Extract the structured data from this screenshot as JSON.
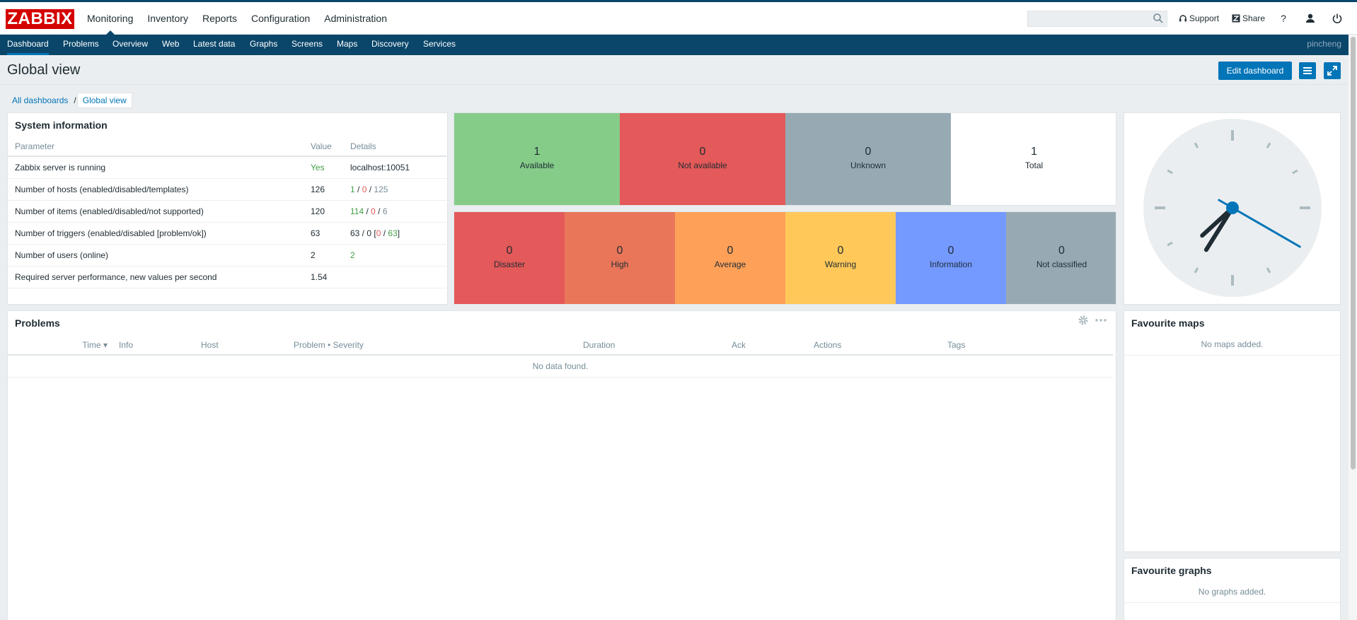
{
  "header": {
    "logo": "ZABBIX",
    "menu": [
      "Monitoring",
      "Inventory",
      "Reports",
      "Configuration",
      "Administration"
    ],
    "search_value": "",
    "support": "Support",
    "share": "Share",
    "help": "?"
  },
  "subnav": {
    "items": [
      "Dashboard",
      "Problems",
      "Overview",
      "Web",
      "Latest data",
      "Graphs",
      "Screens",
      "Maps",
      "Discovery",
      "Services"
    ],
    "user": "pincheng"
  },
  "page": {
    "title": "Global view",
    "edit_button": "Edit dashboard",
    "breadcrumb": [
      "All dashboards",
      "Global view"
    ],
    "breadcrumb_sep": "/"
  },
  "system_info": {
    "title": "System information",
    "headers": [
      "Parameter",
      "Value",
      "Details"
    ],
    "rows": [
      {
        "param": "Zabbix server is running",
        "value": "Yes",
        "d": [
          "localhost:10051"
        ]
      },
      {
        "param": "Number of hosts (enabled/disabled/templates)",
        "value": "126",
        "d": [
          "1",
          " / ",
          "0",
          " / ",
          "125"
        ]
      },
      {
        "param": "Number of items (enabled/disabled/not supported)",
        "value": "120",
        "d": [
          "114",
          " / ",
          "0",
          " / ",
          "6"
        ]
      },
      {
        "param": "Number of triggers (enabled/disabled [problem/ok])",
        "value": "63",
        "d": [
          "63 / 0 [",
          "0",
          " / ",
          "63",
          "]"
        ]
      },
      {
        "param": "Number of users (online)",
        "value": "2",
        "d": [
          "2"
        ]
      },
      {
        "param": "Required server performance, new values per second",
        "value": "1.54",
        "d": [
          ""
        ]
      }
    ]
  },
  "host_availability": [
    {
      "count": "1",
      "label": "Available",
      "color": "#86cc89"
    },
    {
      "count": "0",
      "label": "Not available",
      "color": "#e45959"
    },
    {
      "count": "0",
      "label": "Unknown",
      "color": "#97aab3"
    },
    {
      "count": "1",
      "label": "Total",
      "color": "#ffffff"
    }
  ],
  "severity": [
    {
      "count": "0",
      "label": "Disaster",
      "color": "#e45959"
    },
    {
      "count": "0",
      "label": "High",
      "color": "#e97659"
    },
    {
      "count": "0",
      "label": "Average",
      "color": "#ffa059"
    },
    {
      "count": "0",
      "label": "Warning",
      "color": "#ffc859"
    },
    {
      "count": "0",
      "label": "Information",
      "color": "#7499ff"
    },
    {
      "count": "0",
      "label": "Not classified",
      "color": "#97aab3"
    }
  ],
  "clock": {
    "hours": 7,
    "minutes": 35,
    "seconds": 20
  },
  "problems": {
    "title": "Problems",
    "headers": [
      "Time ▾",
      "Info",
      "Host",
      "Problem • Severity",
      "Duration",
      "Ack",
      "Actions",
      "Tags"
    ],
    "empty": "No data found."
  },
  "fav_maps": {
    "title": "Favourite maps",
    "empty": "No maps added."
  },
  "fav_graphs": {
    "title": "Favourite graphs",
    "empty": "No graphs added."
  }
}
